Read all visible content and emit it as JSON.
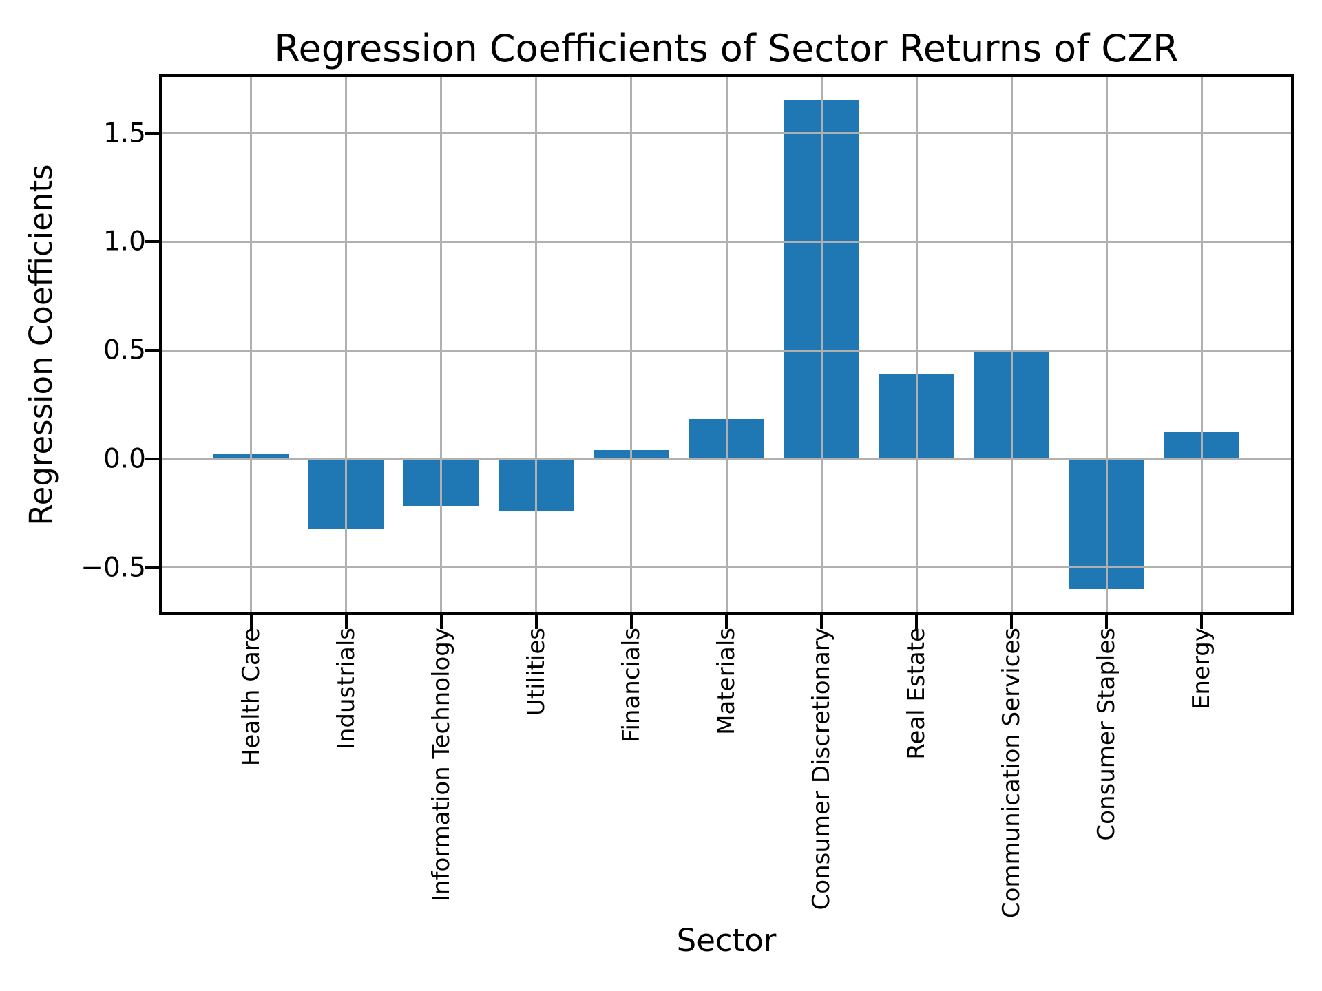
{
  "chart_data": {
    "type": "bar",
    "title": "Regression Coefficients of Sector Returns of CZR",
    "xlabel": "Sector",
    "ylabel": "Regression Coefficients",
    "categories": [
      "Health Care",
      "Industrials",
      "Information Technology",
      "Utilities",
      "Financials",
      "Materials",
      "Consumer Discretionary",
      "Real Estate",
      "Communication Services",
      "Consumer Staples",
      "Energy"
    ],
    "values": [
      0.025,
      -0.32,
      -0.215,
      -0.24,
      0.04,
      0.185,
      1.65,
      0.39,
      0.5,
      -0.6,
      0.125
    ],
    "yticks": [
      -0.5,
      0.0,
      0.5,
      1.0,
      1.5
    ],
    "ytick_labels": [
      "−0.5",
      "0.0",
      "0.5",
      "1.0",
      "1.5"
    ],
    "ylim": [
      -0.707,
      1.759
    ],
    "grid": true,
    "grid_over_bars": true,
    "legend_position": "none",
    "bar_color": "#1f77b4",
    "grid_color": "#b0b0b0",
    "spine_color": "#000000",
    "text_color": "#000000",
    "background_color": "#ffffff"
  }
}
